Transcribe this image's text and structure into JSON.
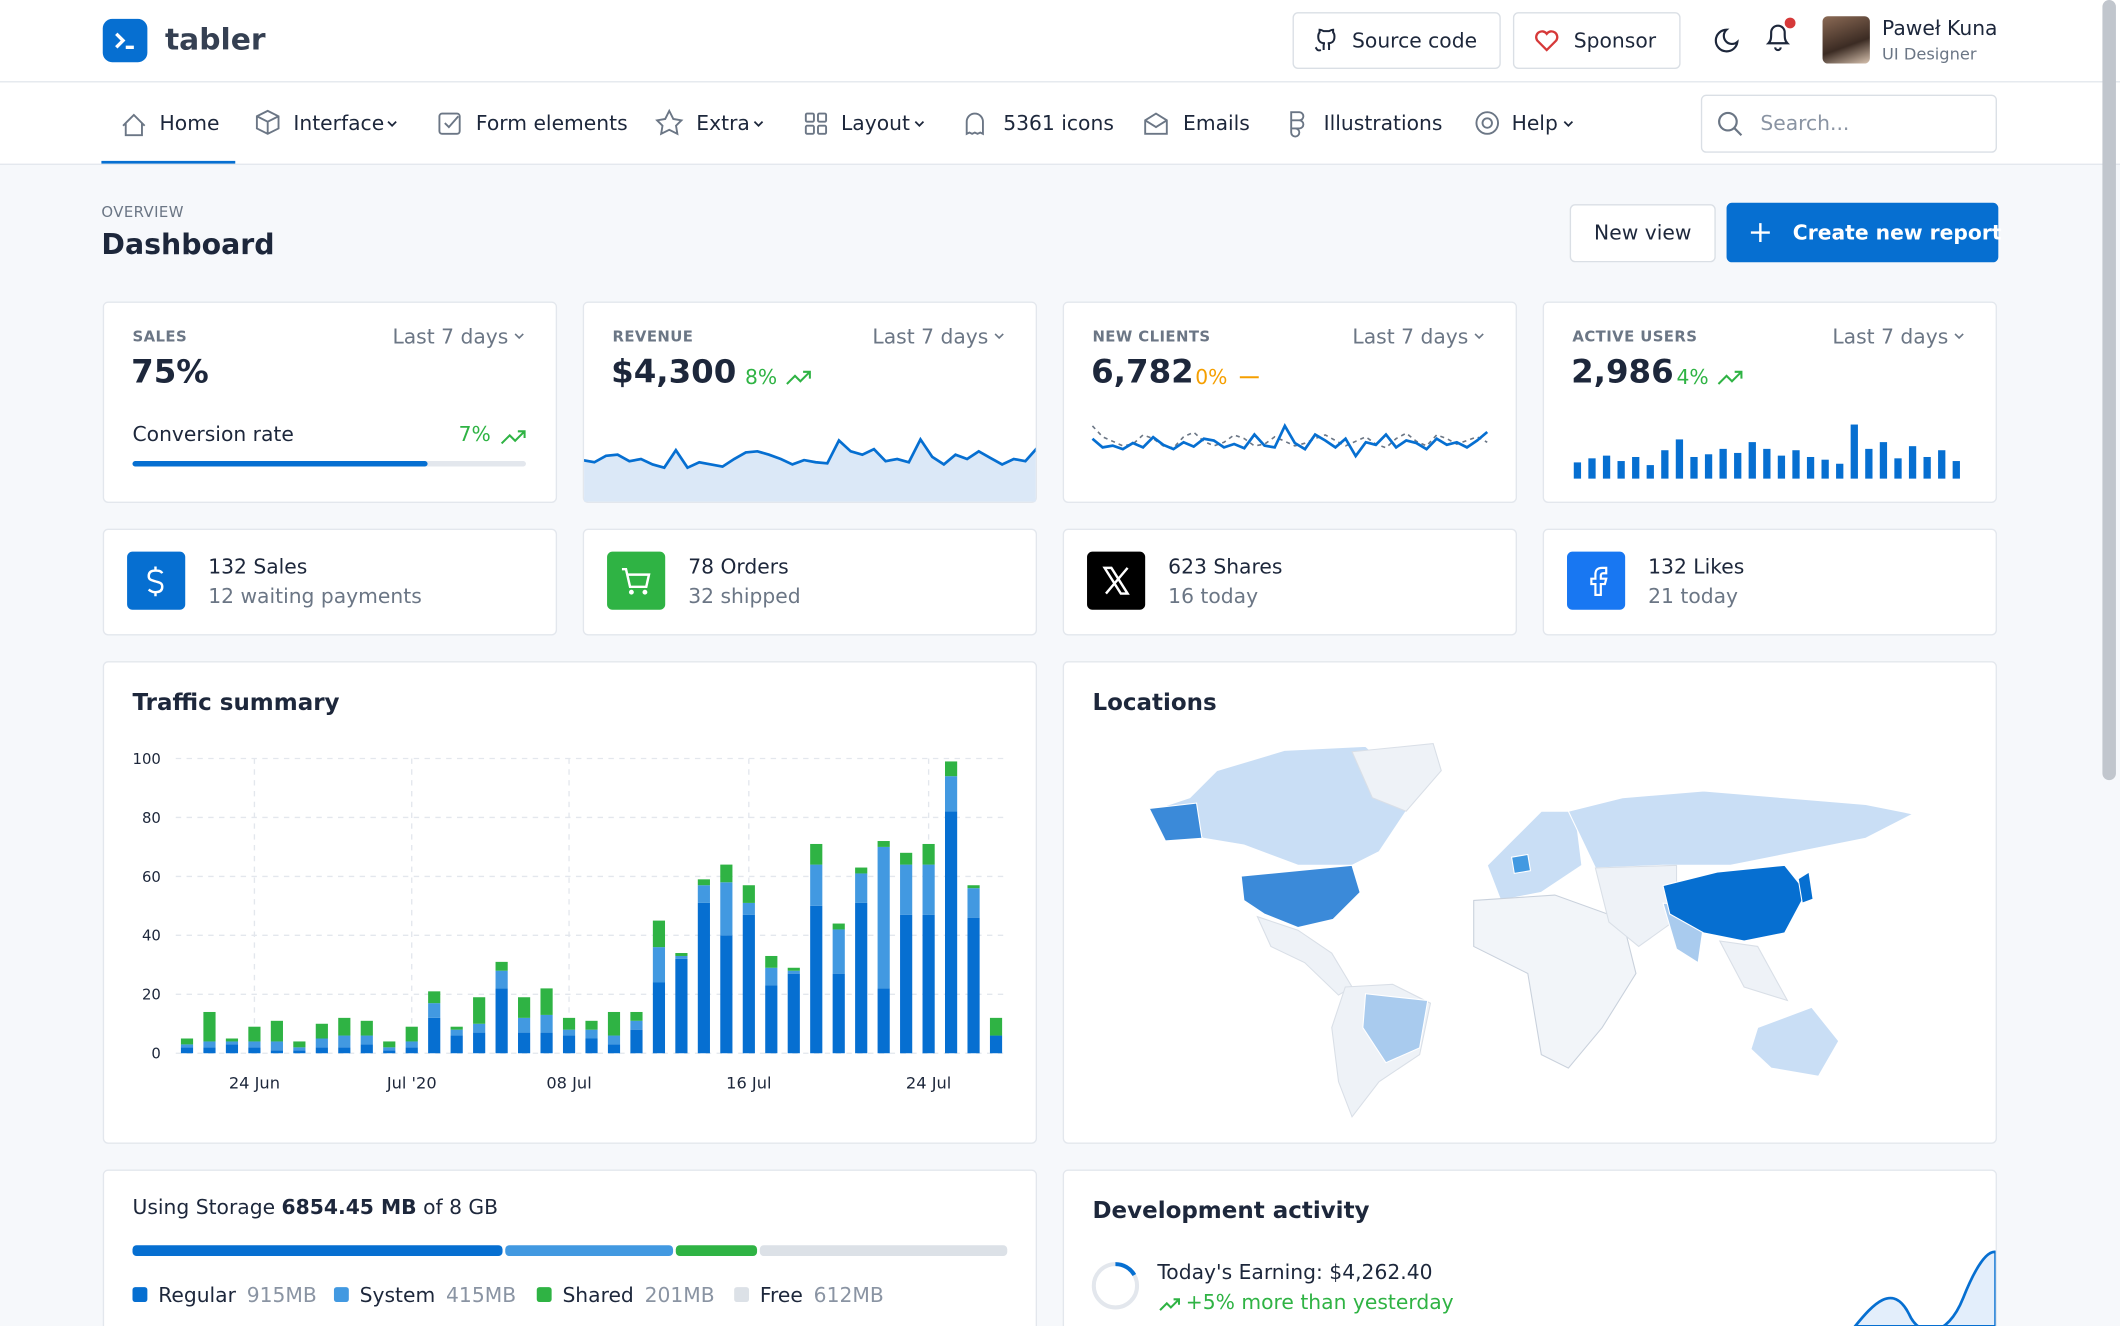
{
  "header": {
    "brand": "tabler",
    "buttons": [
      "Source code",
      "Sponsor"
    ],
    "user": {
      "name": "Paweł Kuna",
      "role": "UI Designer"
    }
  },
  "nav": {
    "items": [
      "Home",
      "Interface",
      "Form elements",
      "Extra",
      "Layout",
      "5361 icons",
      "Emails",
      "Illustrations",
      "Help"
    ],
    "search_placeholder": "Search..."
  },
  "page": {
    "pretitle": "OVERVIEW",
    "title": "Dashboard",
    "actions": [
      "New view",
      "Create new report"
    ]
  },
  "stat_cards": [
    {
      "label": "SALES",
      "period": "Last 7 days",
      "value": {
        "value": 75,
        "label": "75%"
      },
      "sub_label": "Conversion rate",
      "change": "7%"
    },
    {
      "label": "REVENUE",
      "period": "Last 7 days",
      "value": "$4,300",
      "change": "8%",
      "sparkline": [
        37,
        35,
        41,
        42,
        36,
        38,
        33,
        30,
        46,
        30,
        35,
        33,
        31,
        38,
        44,
        45,
        42,
        38,
        33,
        37,
        35,
        34,
        55,
        45,
        42,
        47,
        36,
        38,
        35,
        56,
        40,
        33,
        42,
        38,
        45,
        39,
        33,
        38,
        36,
        48
      ]
    },
    {
      "label": "NEW CLIENTS",
      "period": "Last 7 days",
      "value": "6,782",
      "change": "0%",
      "sparkline": [
        40,
        30,
        32,
        28,
        35,
        30,
        42,
        33,
        28,
        36,
        31,
        40,
        38,
        30,
        34,
        29,
        45,
        32,
        30,
        55,
        35,
        28,
        45,
        38,
        30,
        40,
        20,
        36,
        33,
        45,
        30,
        38,
        35,
        28,
        40,
        33,
        36,
        30,
        38,
        48
      ],
      "sparkline2": [
        52,
        40,
        35,
        30,
        32,
        42,
        38,
        30,
        28,
        40,
        45,
        35,
        30,
        34,
        42,
        38,
        30,
        32,
        40,
        35,
        30,
        33,
        38,
        42,
        36,
        30,
        35,
        40,
        32,
        28,
        38,
        44,
        35,
        30,
        42,
        38,
        32,
        36,
        40,
        34
      ]
    },
    {
      "label": "ACTIVE USERS",
      "period": "Last 7 days",
      "value": "2,986",
      "change": "4%",
      "sparkline": [
        12,
        15,
        17,
        13,
        16,
        10,
        21,
        29,
        16,
        18,
        22,
        19,
        27,
        22,
        17,
        21,
        16,
        14,
        11,
        40,
        22,
        27,
        15,
        24,
        16,
        21,
        13
      ]
    }
  ],
  "mini_cards": [
    {
      "title": "132 Sales",
      "subtitle": "12 waiting payments"
    },
    {
      "title": "78 Orders",
      "subtitle": "32 shipped"
    },
    {
      "title": "623 Shares",
      "subtitle": "16 today"
    },
    {
      "title": "132 Likes",
      "subtitle": "21 today"
    }
  ],
  "chart_data": {
    "type": "bar",
    "stacked": true,
    "title": "Traffic summary",
    "categories": [
      null,
      null,
      null,
      "24 Jun",
      null,
      null,
      null,
      null,
      null,
      null,
      "Jul '20",
      null,
      null,
      null,
      null,
      null,
      null,
      "08 Jul",
      null,
      null,
      null,
      null,
      null,
      null,
      null,
      "16 Jul",
      null,
      null,
      null,
      null,
      null,
      null,
      null,
      "24 Jul",
      null,
      null,
      null
    ],
    "series": [
      {
        "color": "#066fd1",
        "values": [
          2,
          2,
          3,
          2,
          1,
          1,
          2,
          2,
          3,
          1,
          2,
          12,
          6,
          7,
          22,
          7,
          7,
          6,
          5,
          3,
          8,
          24,
          32,
          51,
          40,
          47,
          23,
          27,
          50,
          27,
          51,
          22,
          47,
          47,
          82,
          46,
          6
        ]
      },
      {
        "color": "#4299e1",
        "values": [
          1,
          2,
          1,
          2,
          3,
          1,
          3,
          4,
          3,
          1,
          2,
          5,
          2,
          3,
          6,
          5,
          6,
          2,
          3,
          3,
          3,
          12,
          1,
          6,
          18,
          4,
          6,
          1,
          14,
          15,
          10,
          48,
          17,
          17,
          12,
          10,
          0
        ]
      },
      {
        "color": "#2fb344",
        "values": [
          2,
          10,
          1,
          5,
          7,
          2,
          5,
          6,
          5,
          2,
          5,
          4,
          1,
          9,
          3,
          7,
          9,
          4,
          3,
          8,
          3,
          9,
          1,
          2,
          6,
          6,
          4,
          1,
          7,
          2,
          2,
          2,
          4,
          7,
          5,
          1,
          6
        ]
      }
    ],
    "ylim": [
      0,
      100
    ],
    "yticks": [
      0,
      20,
      40,
      60,
      80,
      100
    ],
    "grid": true
  },
  "locations": {
    "title": "Locations"
  },
  "storage": {
    "prefix": "Using Storage",
    "used": "6854.45 MB",
    "suffix": "of 8 GB",
    "segments": [
      {
        "name": "Regular",
        "value": 915,
        "value_label": "915MB",
        "color": "#066fd1"
      },
      {
        "name": "System",
        "value": 415,
        "value_label": "415MB",
        "color": "#4299e1"
      },
      {
        "name": "Shared",
        "value": 201,
        "value_label": "201MB",
        "color": "#2fb344"
      },
      {
        "name": "Free",
        "value": 612,
        "value_label": "612MB",
        "color": "#dce1e7"
      }
    ]
  },
  "dev": {
    "title": "Development activity",
    "earning": "Today's Earning: $4,262.40",
    "change": "+5% more than yesterday"
  }
}
